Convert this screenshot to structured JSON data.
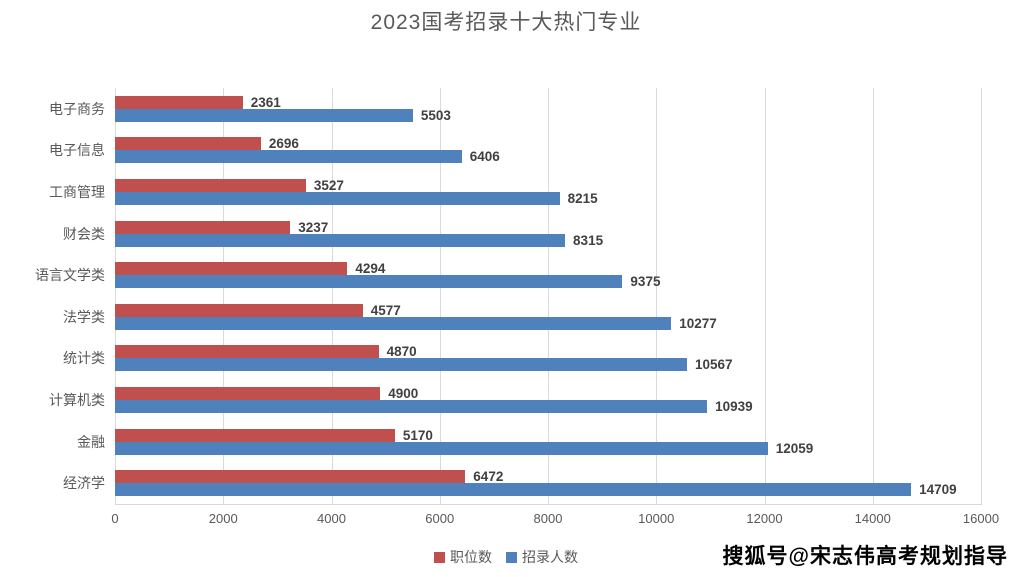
{
  "title": "2023国考招录十大热门专业",
  "watermark": "搜狐号@宋志伟高考规划指导",
  "colors": {
    "positions_red": "#C0504D",
    "recruits_blue": "#4F81BD",
    "gridline": "#D9D9D9",
    "data_label_text": "#404040",
    "axis_text": "#595959"
  },
  "legend": {
    "items": [
      {
        "label": "职位数",
        "color": "#C0504D"
      },
      {
        "label": "招录人数",
        "color": "#4F81BD"
      }
    ]
  },
  "chart_data": {
    "type": "bar",
    "orientation": "horizontal",
    "title": "2023国考招录十大热门专业",
    "categories": [
      "电子商务",
      "电子信息",
      "工商管理",
      "财会类",
      "语言文学类",
      "法学类",
      "统计类",
      "计算机类",
      "金融",
      "经济学"
    ],
    "series": [
      {
        "name": "职位数",
        "color": "#C0504D",
        "values": [
          2361,
          2696,
          3527,
          3237,
          4294,
          4577,
          4870,
          4900,
          5170,
          6472
        ]
      },
      {
        "name": "招录人数",
        "color": "#4F81BD",
        "values": [
          5503,
          6406,
          8215,
          8315,
          9375,
          10277,
          10567,
          10939,
          12059,
          14709
        ]
      }
    ],
    "xlim": [
      0,
      16000
    ],
    "x_ticks": [
      0,
      2000,
      4000,
      6000,
      8000,
      10000,
      12000,
      14000,
      16000
    ],
    "grid": true,
    "data_labels": true,
    "legend_position": "bottom"
  }
}
